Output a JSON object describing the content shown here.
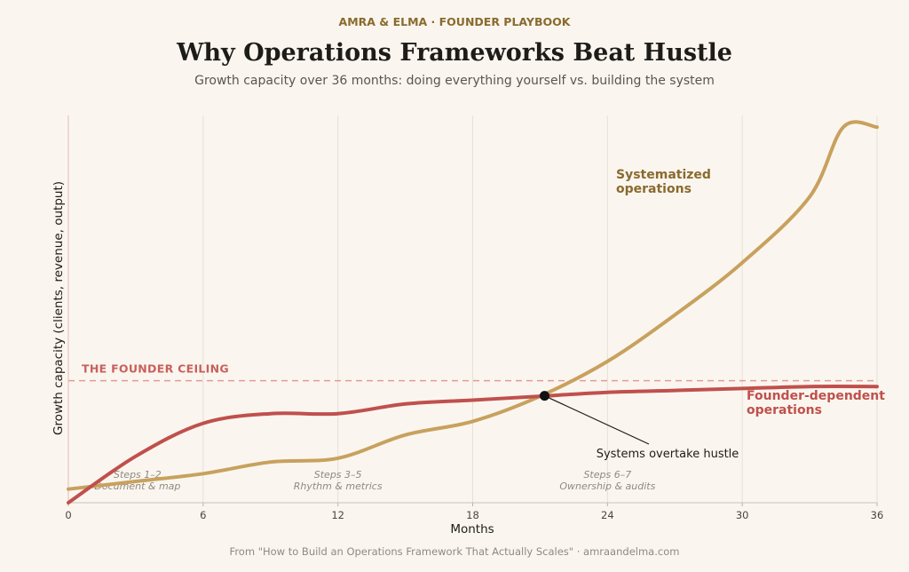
{
  "header": {
    "kicker": "AMRA & ELMA  ·  FOUNDER PLAYBOOK",
    "title": "Why Operations Frameworks Beat Hustle",
    "subtitle": "Growth capacity over 36 months: doing everything yourself vs. building the system"
  },
  "footer": {
    "source": "From \"How to Build an Operations Framework That Actually Scales\"  ·  amraandelma.com"
  },
  "colors": {
    "background": "#faf6ef",
    "systematized": "#c8a15e",
    "founder": "#c0504d",
    "ceiling": "#e49a96",
    "kicker": "#8a6a2e",
    "annotation_text": "#8f8a80",
    "grid": "#e6e0d6"
  },
  "chart_data": {
    "type": "line",
    "xlabel": "Months",
    "ylabel": "Growth capacity  (clients, revenue, output)",
    "xlim": [
      0,
      36
    ],
    "ylim": [
      0,
      100
    ],
    "xticks": [
      0,
      6,
      12,
      18,
      24,
      30,
      36
    ],
    "grid": "vertical",
    "series": [
      {
        "name": "Systematized operations",
        "color": "#c8a15e",
        "x": [
          0,
          3,
          6,
          9,
          12,
          15,
          18,
          21,
          24,
          27,
          30,
          33,
          34.5,
          36
        ],
        "y": [
          3.5,
          5.5,
          7.5,
          10.5,
          11.5,
          17.5,
          21,
          27.5,
          36.5,
          48.5,
          62,
          79,
          97,
          97
        ]
      },
      {
        "name": "Founder-dependent operations",
        "color": "#c0504d",
        "x": [
          0,
          3,
          6,
          9,
          12,
          15,
          18,
          21,
          24,
          27,
          30,
          33,
          36
        ],
        "y": [
          0,
          12,
          20.5,
          23,
          23,
          25.5,
          26.5,
          27.5,
          28.5,
          29,
          29.5,
          30,
          30
        ]
      }
    ],
    "ceiling": {
      "label": "THE FOUNDER CEILING",
      "y": 31.5
    },
    "crossover": {
      "x": 21.2,
      "y": 27.6,
      "label": "Systems overtake hustle"
    },
    "series_labels": [
      {
        "text": "Systematized\noperations",
        "series": 0
      },
      {
        "text": "Founder-dependent\noperations",
        "series": 1
      }
    ],
    "phase_annotations": [
      {
        "x": 3,
        "line1": "Steps 1–2",
        "line2": "Document & map"
      },
      {
        "x": 12,
        "line1": "Steps 3–5",
        "line2": "Rhythm & metrics"
      },
      {
        "x": 24,
        "line1": "Steps 6–7",
        "line2": "Ownership & audits"
      }
    ]
  }
}
